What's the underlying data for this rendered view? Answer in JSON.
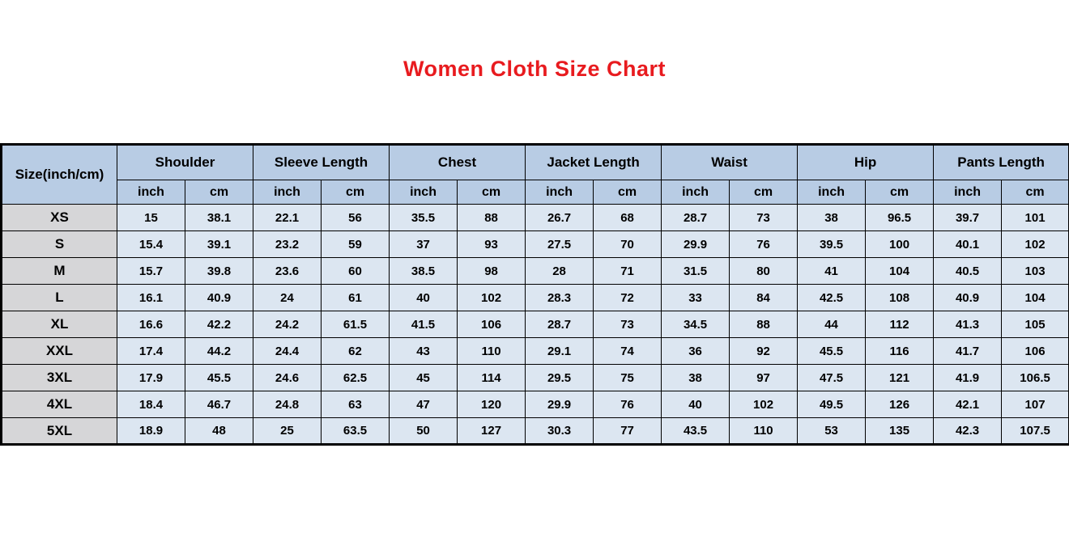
{
  "title": "Women Cloth Size Chart",
  "colors": {
    "title_red": "#e81b1f",
    "header_bg": "#b8cce4",
    "cell_bg": "#dce6f1",
    "size_col_bg": "#d6d6d8",
    "border": "#000000"
  },
  "chart_data": {
    "type": "table",
    "title": "Women Cloth Size Chart",
    "size_column_header": "Size(inch/cm)",
    "measure_groups": [
      "Shoulder",
      "Sleeve Length",
      "Chest",
      "Jacket Length",
      "Waist",
      "Hip",
      "Pants Length"
    ],
    "unit_headers": [
      "inch",
      "cm"
    ],
    "rows": [
      {
        "size": "XS",
        "values": [
          15,
          38.1,
          22.1,
          56,
          35.5,
          88,
          26.7,
          68,
          28.7,
          73,
          38,
          96.5,
          39.7,
          101
        ]
      },
      {
        "size": "S",
        "values": [
          15.4,
          39.1,
          23.2,
          59,
          37,
          93,
          27.5,
          70,
          29.9,
          76,
          39.5,
          100,
          40.1,
          102
        ]
      },
      {
        "size": "M",
        "values": [
          15.7,
          39.8,
          23.6,
          60,
          38.5,
          98,
          28,
          71,
          31.5,
          80,
          41,
          104,
          40.5,
          103
        ]
      },
      {
        "size": "L",
        "values": [
          16.1,
          40.9,
          24,
          61,
          40,
          102,
          28.3,
          72,
          33,
          84,
          42.5,
          108,
          40.9,
          104
        ]
      },
      {
        "size": "XL",
        "values": [
          16.6,
          42.2,
          24.2,
          61.5,
          41.5,
          106,
          28.7,
          73,
          34.5,
          88,
          44,
          112,
          41.3,
          105
        ]
      },
      {
        "size": "XXL",
        "values": [
          17.4,
          44.2,
          24.4,
          62,
          43,
          110,
          29.1,
          74,
          36,
          92,
          45.5,
          116,
          41.7,
          106
        ]
      },
      {
        "size": "3XL",
        "values": [
          17.9,
          45.5,
          24.6,
          62.5,
          45,
          114,
          29.5,
          75,
          38,
          97,
          47.5,
          121,
          41.9,
          106.5
        ]
      },
      {
        "size": "4XL",
        "values": [
          18.4,
          46.7,
          24.8,
          63,
          47,
          120,
          29.9,
          76,
          40,
          102,
          49.5,
          126,
          42.1,
          107
        ]
      },
      {
        "size": "5XL",
        "values": [
          18.9,
          48,
          25,
          63.5,
          50,
          127,
          30.3,
          77,
          43.5,
          110,
          53,
          135,
          42.3,
          107.5
        ]
      }
    ]
  }
}
